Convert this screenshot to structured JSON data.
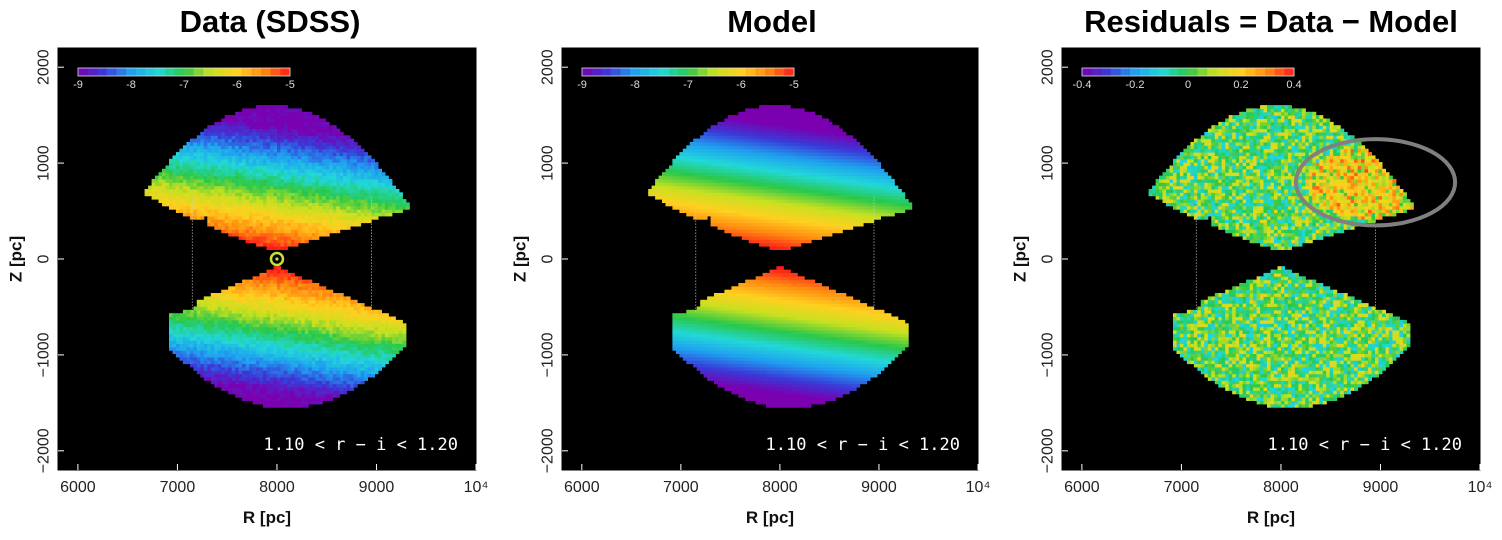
{
  "chart_data": [
    {
      "type": "heatmap",
      "title": "Data (SDSS)",
      "xlabel": "R [pc]",
      "ylabel": "Z [pc]",
      "xlim": [
        5800,
        10000
      ],
      "ylim": [
        -2200,
        2200
      ],
      "xticks": [
        6000,
        7000,
        8000,
        9000,
        10000
      ],
      "xtick_labels": [
        "6000",
        "7000",
        "8000",
        "9000",
        "10⁴"
      ],
      "yticks": [
        -2000,
        -1000,
        0,
        1000,
        2000
      ],
      "ytick_labels": [
        "−2000",
        "−1000",
        "0",
        "1000",
        "2000"
      ],
      "colorbar": {
        "min": -9,
        "max": -5,
        "ticks": [
          "-9",
          "-8",
          "-7",
          "-6",
          "-5"
        ]
      },
      "annotation": "1.10 < r − i < 1.20",
      "background": "#000000",
      "features": {
        "sun_marker_R": 8000,
        "sun_marker_Z": 0,
        "guide_lines_R": [
          7150,
          8950
        ]
      }
    },
    {
      "type": "heatmap",
      "title": "Model",
      "xlabel": "R [pc]",
      "ylabel": "Z [pc]",
      "xlim": [
        5800,
        10000
      ],
      "ylim": [
        -2200,
        2200
      ],
      "xticks": [
        6000,
        7000,
        8000,
        9000,
        10000
      ],
      "xtick_labels": [
        "6000",
        "7000",
        "8000",
        "9000",
        "10⁴"
      ],
      "yticks": [
        -2000,
        -1000,
        0,
        1000,
        2000
      ],
      "ytick_labels": [
        "−2000",
        "−1000",
        "0",
        "1000",
        "2000"
      ],
      "colorbar": {
        "min": -9,
        "max": -5,
        "ticks": [
          "-9",
          "-8",
          "-7",
          "-6",
          "-5"
        ]
      },
      "annotation": "1.10 < r − i < 1.20",
      "background": "#000000",
      "features": {
        "guide_lines_R": [
          7150,
          8950
        ]
      }
    },
    {
      "type": "heatmap",
      "title": "Residuals = Data − Model",
      "xlabel": "R [pc]",
      "ylabel": "Z [pc]",
      "xlim": [
        5800,
        10000
      ],
      "ylim": [
        -2200,
        2200
      ],
      "xticks": [
        6000,
        7000,
        8000,
        9000,
        10000
      ],
      "xtick_labels": [
        "6000",
        "7000",
        "8000",
        "9000",
        "10⁴"
      ],
      "yticks": [
        -2000,
        -1000,
        0,
        1000,
        2000
      ],
      "ytick_labels": [
        "−2000",
        "−1000",
        "0",
        "1000",
        "2000"
      ],
      "colorbar": {
        "min": -0.4,
        "max": 0.4,
        "ticks": [
          "-0.4",
          "-0.2",
          "0",
          "0.2",
          "0.4"
        ]
      },
      "annotation": "1.10 < r − i < 1.20",
      "background": "#000000",
      "features": {
        "guide_lines_R": [
          7150,
          8950
        ],
        "highlight_ellipse": {
          "center_R": 8950,
          "center_Z": 800,
          "radius_R": 800,
          "radius_Z": 450,
          "color": "#808080"
        }
      }
    }
  ],
  "colors": {
    "palette": [
      "#7a00b0",
      "#3a3ad8",
      "#1fa0f0",
      "#22d8d8",
      "#29c84a",
      "#c8e020",
      "#ffd020",
      "#ff8a10",
      "#ff1a1a"
    ]
  }
}
